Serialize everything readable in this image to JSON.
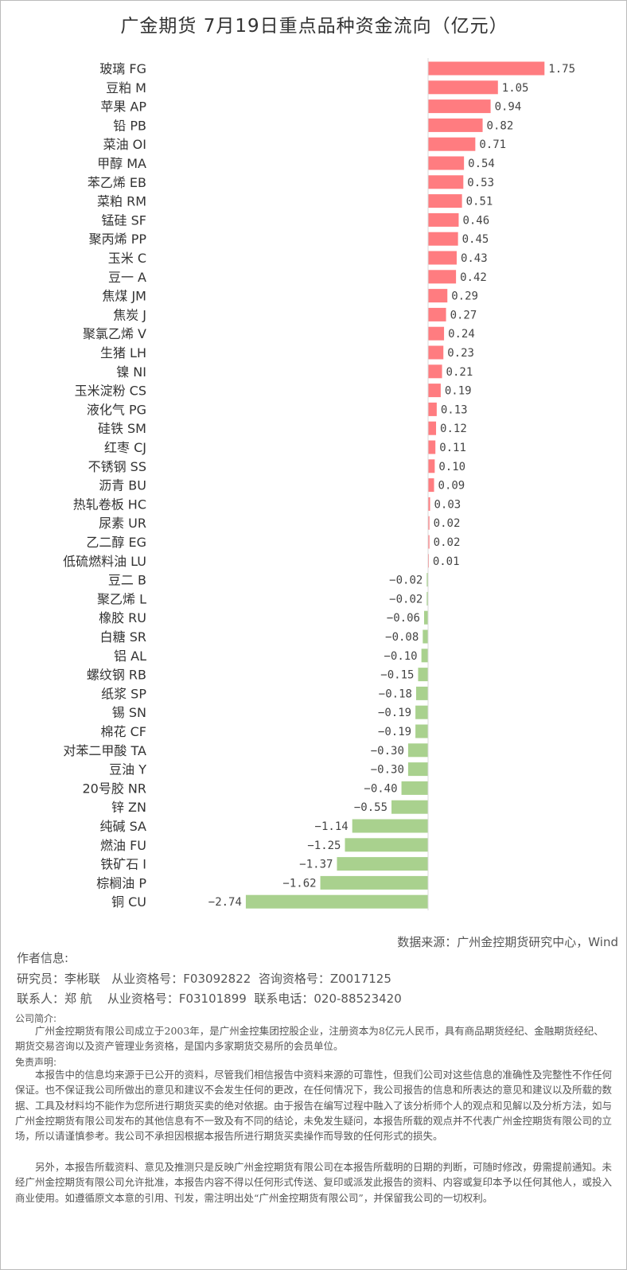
{
  "title": "广金期货 7月19日重点品种资金流向（亿元）",
  "colors": {
    "positive": "#ff7c80",
    "negative": "#a9d18e"
  },
  "chart_data": {
    "type": "bar",
    "orientation": "horizontal",
    "title": "广金期货 7月19日重点品种资金流向（亿元）",
    "categories": [
      "玻璃 FG",
      "豆粕 M",
      "苹果 AP",
      "铅 PB",
      "菜油 OI",
      "甲醇 MA",
      "苯乙烯 EB",
      "菜粕 RM",
      "锰硅 SF",
      "聚丙烯 PP",
      "玉米 C",
      "豆一 A",
      "焦煤 JM",
      "焦炭 J",
      "聚氯乙烯 V",
      "生猪 LH",
      "镍 NI",
      "玉米淀粉 CS",
      "液化气 PG",
      "硅铁 SM",
      "红枣 CJ",
      "不锈钢 SS",
      "沥青 BU",
      "热轧卷板 HC",
      "尿素 UR",
      "乙二醇 EG",
      "低硫燃料油 LU",
      "豆二 B",
      "聚乙烯 L",
      "橡胶 RU",
      "白糖 SR",
      "铝 AL",
      "螺纹钢 RB",
      "纸浆 SP",
      "锡 SN",
      "棉花 CF",
      "对苯二甲酸 TA",
      "豆油 Y",
      "20号胶 NR",
      "锌 ZN",
      "纯碱 SA",
      "燃油 FU",
      "铁矿石 I",
      "棕榈油 P",
      "铜 CU"
    ],
    "values": [
      1.75,
      1.05,
      0.94,
      0.82,
      0.71,
      0.54,
      0.53,
      0.51,
      0.46,
      0.45,
      0.43,
      0.42,
      0.29,
      0.27,
      0.24,
      0.23,
      0.21,
      0.19,
      0.13,
      0.12,
      0.11,
      0.1,
      0.09,
      0.03,
      0.02,
      0.02,
      0.01,
      -0.02,
      -0.02,
      -0.06,
      -0.08,
      -0.1,
      -0.15,
      -0.18,
      -0.19,
      -0.19,
      -0.3,
      -0.3,
      -0.4,
      -0.55,
      -1.14,
      -1.25,
      -1.37,
      -1.62,
      -2.74
    ],
    "data_labels": [
      "1.75",
      "1.05",
      "0.94",
      "0.82",
      "0.71",
      "0.54",
      "0.53",
      "0.51",
      "0.46",
      "0.45",
      "0.43",
      "0.42",
      "0.29",
      "0.27",
      "0.24",
      "0.23",
      "0.21",
      "0.19",
      "0.13",
      "0.12",
      "0.11",
      "0.10",
      "0.09",
      "0.03",
      "0.02",
      "0.02",
      "0.01",
      "−0.02",
      "−0.02",
      "−0.06",
      "−0.08",
      "−0.10",
      "−0.15",
      "−0.18",
      "−0.19",
      "−0.19",
      "−0.30",
      "−0.30",
      "−0.40",
      "−0.55",
      "−1.14",
      "−1.25",
      "−1.37",
      "−1.62",
      "−2.74"
    ],
    "xlim": [
      -2.8,
      1.8
    ],
    "grid": false,
    "legend": "none"
  },
  "source": "数据来源：广州金控期货研究中心，Wind",
  "author": {
    "heading": "作者信息:",
    "line1": "研究员：李彬联   从业资格号：F03092822  咨询资格号：Z0017125",
    "line2": "联系人：郑 航    从业资格号：F03101899  联系电话：020-88523420"
  },
  "company": {
    "heading": "公司简介:",
    "text": "广州金控期货有限公司成立于2003年，是广州金控集团控股企业，注册资本为8亿元人民币，具有商品期货经纪、金融期货经纪、期货交易咨询以及资产管理业务资格，是国内多家期货交易所的会员单位。"
  },
  "disclaimer": {
    "heading": "免责声明:",
    "p1": "本报告中的信息均来源于已公开的资料，尽管我们相信报告中资料来源的可靠性，但我们公司对这些信息的准确性及完整性不作任何保证。也不保证我公司所做出的意见和建议不会发生任何的更改，在任何情况下，我公司报告的信息和所表达的意见和建议以及所载的数据、工具及材料均不能作为您所进行期货买卖的绝对依据。由于报告在编写过程中融入了该分析师个人的观点和见解以及分析方法，如与广州金控期货有限公司发布的其他信息有不一致及有不同的结论，未免发生疑问，本报告所载的观点并不代表广州金控期货有限公司的立场，所以请谨慎参考。我公司不承担因根据本报告所进行期货买卖操作而导致的任何形式的损失。",
    "p2": "另外，本报告所载资料、意见及推测只是反映广州金控期货有限公司在本报告所载明的日期的判断，可随时修改，毋需提前通知。未经广州金控期货有限公司允许批准，本报告内容不得以任何形式传送、复印或派发此报告的资料、内容或复印本予以任何其他人，或投入商业使用。如遵循原文本意的引用、刊发，需注明出处“广州金控期货有限公司”，并保留我公司的一切权利。"
  }
}
